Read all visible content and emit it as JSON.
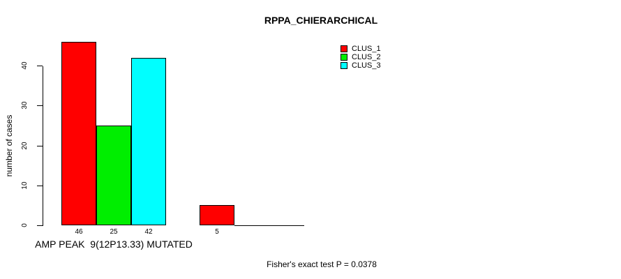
{
  "title": "RPPA_CHIERARCHICAL",
  "y_axis": {
    "label": "number of cases",
    "tick_labels": [
      "0",
      "10",
      "20",
      "30",
      "40"
    ]
  },
  "x_axis": {
    "group_label": "AMP PEAK  9(12P13.33) MUTATED"
  },
  "legend": {
    "items": [
      {
        "label": "CLUS_1",
        "color": "#FF0000"
      },
      {
        "label": "CLUS_2",
        "color": "#00EE00"
      },
      {
        "label": "CLUS_3",
        "color": "#00FFFF"
      }
    ]
  },
  "footer": "Fisher's exact test P = 0.0378",
  "chart_data": {
    "type": "bar",
    "title": "RPPA_CHIERARCHICAL",
    "xlabel": "AMP PEAK  9(12P13.33) MUTATED",
    "ylabel": "number of cases",
    "categories": [
      "AMP PEAK  9(12P13.33) MUTATED",
      ""
    ],
    "series": [
      {
        "name": "CLUS_1",
        "color": "#FF0000",
        "values": [
          46,
          5
        ]
      },
      {
        "name": "CLUS_2",
        "color": "#00EE00",
        "values": [
          25,
          0
        ]
      },
      {
        "name": "CLUS_3",
        "color": "#00FFFF",
        "values": [
          42,
          0
        ]
      }
    ],
    "bar_value_labels": [
      [
        46,
        25,
        42
      ],
      [
        5
      ]
    ],
    "ylim": [
      0,
      46
    ],
    "yticks": [
      0,
      10,
      20,
      30,
      40
    ],
    "grid": false,
    "legend_position": "top-right",
    "annotation": "Fisher's exact test P = 0.0378"
  }
}
